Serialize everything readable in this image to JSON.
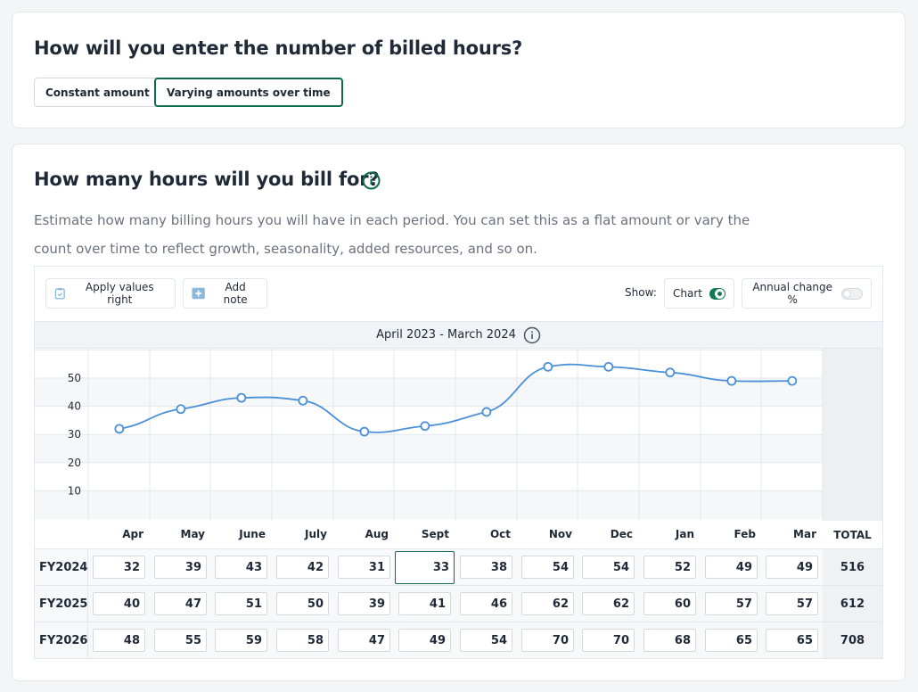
{
  "section1": {
    "title": "How will you enter the number of billed hours?",
    "options": [
      "Constant amount",
      "Varying amounts over time"
    ],
    "selected": "Varying amounts over time"
  },
  "section2": {
    "title": "How many hours will you bill for?",
    "description": "Estimate how many billing hours you will have in each period. You can set this as a flat amount or vary the count over time to reflect growth, seasonality, added resources, and so on.",
    "toolbar": {
      "apply_label": "Apply values right",
      "note_label": "Add note",
      "show_label": "Show:",
      "chart_label": "Chart",
      "chart_on": true,
      "annual_label": "Annual change %",
      "annual_on": false
    },
    "period": "April 2023 - March 2024",
    "months": [
      "Apr",
      "May",
      "June",
      "July",
      "Aug",
      "Sept",
      "Oct",
      "Nov",
      "Dec",
      "Jan",
      "Feb",
      "Mar"
    ],
    "total_label": "TOTAL",
    "rows": [
      {
        "label": "FY2024",
        "values": [
          "32",
          "39",
          "43",
          "42",
          "31",
          "33",
          "38",
          "54",
          "54",
          "52",
          "49",
          "49"
        ],
        "total": "516"
      },
      {
        "label": "FY2025",
        "values": [
          "40",
          "47",
          "51",
          "50",
          "39",
          "41",
          "46",
          "62",
          "62",
          "60",
          "57",
          "57"
        ],
        "total": "612"
      },
      {
        "label": "FY2026",
        "values": [
          "48",
          "55",
          "59",
          "58",
          "47",
          "49",
          "54",
          "70",
          "70",
          "68",
          "65",
          "65"
        ],
        "total": "708"
      }
    ],
    "focused_cell": "FY2024-Sept"
  },
  "colors": {
    "accent": "#0f6b50",
    "line": "#4a90d9"
  },
  "chart_data": {
    "type": "line",
    "categories": [
      "Apr",
      "May",
      "June",
      "July",
      "Aug",
      "Sept",
      "Oct",
      "Nov",
      "Dec",
      "Jan",
      "Feb",
      "Mar"
    ],
    "series": [
      {
        "values": [
          32,
          39,
          43,
          42,
          31,
          33,
          38,
          54,
          54,
          52,
          49,
          49
        ]
      }
    ],
    "yticks": [
      "10",
      "20",
      "30",
      "40",
      "50"
    ],
    "ylim": [
      0,
      60
    ],
    "grid": true
  }
}
